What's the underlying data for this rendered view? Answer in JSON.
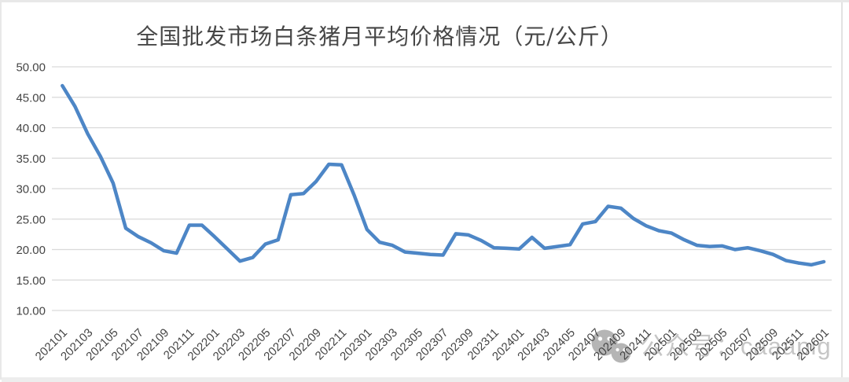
{
  "frame": {
    "border_color": "#e8e8e8",
    "right_edge_color": "#e2e2e2",
    "bottom_bar_color": "#ededed"
  },
  "chart_data": {
    "type": "line",
    "title": "全国批发市场白条猪月平均价格情况（元/公斤）",
    "xlabel": "",
    "ylabel": "",
    "ylim": [
      10,
      50
    ],
    "grid": "horizontal",
    "legend": "none",
    "line_color": "#4D86C6",
    "gridline_color": "#D9D9D9",
    "axis_label_color": "#454545",
    "title_color": "#474747",
    "x": [
      "202101",
      "202102",
      "202103",
      "202104",
      "202105",
      "202106",
      "202107",
      "202108",
      "202109",
      "202110",
      "202111",
      "202112",
      "202201",
      "202202",
      "202203",
      "202204",
      "202205",
      "202206",
      "202207",
      "202208",
      "202209",
      "202210",
      "202211",
      "202212",
      "202301",
      "202302",
      "202303",
      "202304",
      "202305",
      "202306",
      "202307",
      "202308",
      "202309",
      "202310",
      "202311",
      "202312",
      "202401",
      "202402",
      "202403",
      "202404",
      "202405",
      "202406",
      "202407",
      "202408",
      "202409",
      "202410",
      "202411",
      "202412",
      "202501",
      "202502",
      "202503",
      "202504",
      "202505",
      "202506",
      "202507",
      "202508",
      "202509",
      "202510",
      "202511",
      "202512",
      "202601"
    ],
    "values": [
      46.9,
      43.5,
      39.0,
      35.3,
      30.9,
      23.5,
      22.1,
      21.1,
      19.8,
      19.4,
      24.0,
      24.0,
      22.1,
      20.1,
      18.1,
      18.7,
      20.9,
      21.6,
      29.0,
      29.2,
      31.2,
      34.0,
      33.9,
      28.9,
      23.3,
      21.2,
      20.7,
      19.6,
      19.4,
      19.2,
      19.1,
      22.6,
      22.4,
      21.5,
      20.3,
      20.2,
      20.1,
      22.0,
      20.2,
      20.5,
      20.8,
      24.2,
      24.6,
      27.1,
      26.8,
      25.1,
      23.9,
      23.1,
      22.7,
      21.6,
      20.7,
      20.5,
      20.6,
      20.0,
      20.3,
      19.8,
      19.2,
      18.2,
      17.8,
      17.5,
      18.0
    ],
    "x_tick_labels": [
      "202101",
      "202103",
      "202105",
      "202107",
      "202109",
      "202111",
      "202201",
      "202203",
      "202205",
      "202207",
      "202209",
      "202211",
      "202301",
      "202303",
      "202305",
      "202307",
      "202309",
      "202311",
      "202401",
      "202403",
      "202405",
      "202407",
      "202409",
      "202411",
      "202501",
      "202503",
      "202505",
      "202507",
      "202509",
      "202511",
      "202601"
    ],
    "y_ticks": [
      10,
      15,
      20,
      25,
      30,
      35,
      40,
      45,
      50
    ],
    "y_tick_labels": [
      "10.00",
      "15.00",
      "20.00",
      "25.00",
      "30.00",
      "35.00",
      "40.00",
      "45.00",
      "50.00"
    ]
  },
  "watermark": {
    "icon": "wechat-icon",
    "icon_color": "#a3a3a3",
    "text": "公众号：caaapig",
    "text_color": "#c6c6c6"
  }
}
